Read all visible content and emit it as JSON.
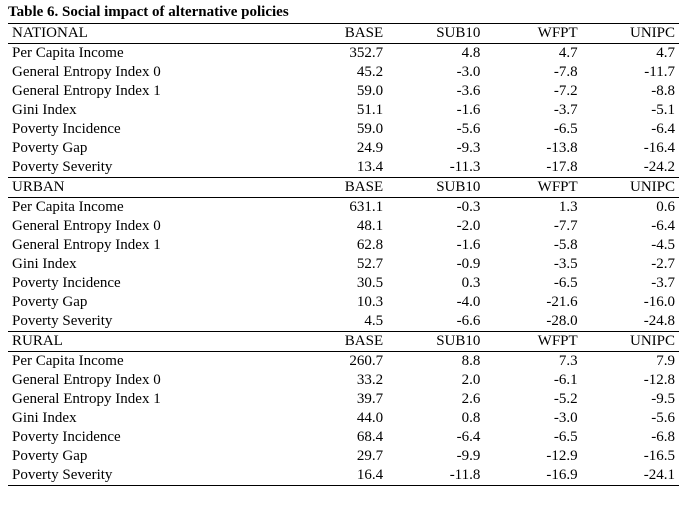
{
  "title": "Table 6. Social impact of alternative policies",
  "columns": [
    "BASE",
    "SUB10",
    "WFPT",
    "UNIPC"
  ],
  "sections": [
    {
      "header": "NATIONAL",
      "rows": [
        {
          "label": "Per Capita Income",
          "vals": [
            "352.7",
            "4.8",
            "4.7",
            "4.7"
          ]
        },
        {
          "label": "General Entropy Index 0",
          "vals": [
            "45.2",
            "-3.0",
            "-7.8",
            "-11.7"
          ]
        },
        {
          "label": "General Entropy Index 1",
          "vals": [
            "59.0",
            "-3.6",
            "-7.2",
            "-8.8"
          ]
        },
        {
          "label": "Gini Index",
          "vals": [
            "51.1",
            "-1.6",
            "-3.7",
            "-5.1"
          ]
        },
        {
          "label": "Poverty Incidence",
          "vals": [
            "59.0",
            "-5.6",
            "-6.5",
            "-6.4"
          ]
        },
        {
          "label": "Poverty Gap",
          "vals": [
            "24.9",
            "-9.3",
            "-13.8",
            "-16.4"
          ]
        },
        {
          "label": "Poverty Severity",
          "vals": [
            "13.4",
            "-11.3",
            "-17.8",
            "-24.2"
          ]
        }
      ]
    },
    {
      "header": "URBAN",
      "rows": [
        {
          "label": "Per Capita Income",
          "vals": [
            "631.1",
            "-0.3",
            "1.3",
            "0.6"
          ]
        },
        {
          "label": "General Entropy Index 0",
          "vals": [
            "48.1",
            "-2.0",
            "-7.7",
            "-6.4"
          ]
        },
        {
          "label": "General Entropy Index 1",
          "vals": [
            "62.8",
            "-1.6",
            "-5.8",
            "-4.5"
          ]
        },
        {
          "label": "Gini Index",
          "vals": [
            "52.7",
            "-0.9",
            "-3.5",
            "-2.7"
          ]
        },
        {
          "label": "Poverty Incidence",
          "vals": [
            "30.5",
            "0.3",
            "-6.5",
            "-3.7"
          ]
        },
        {
          "label": "Poverty Gap",
          "vals": [
            "10.3",
            "-4.0",
            "-21.6",
            "-16.0"
          ]
        },
        {
          "label": "Poverty Severity",
          "vals": [
            "4.5",
            "-6.6",
            "-28.0",
            "-24.8"
          ]
        }
      ]
    },
    {
      "header": "RURAL",
      "rows": [
        {
          "label": "Per Capita Income",
          "vals": [
            "260.7",
            "8.8",
            "7.3",
            "7.9"
          ]
        },
        {
          "label": "General Entropy Index 0",
          "vals": [
            "33.2",
            "2.0",
            "-6.1",
            "-12.8"
          ]
        },
        {
          "label": "General Entropy Index 1",
          "vals": [
            "39.7",
            "2.6",
            "-5.2",
            "-9.5"
          ]
        },
        {
          "label": "Gini Index",
          "vals": [
            "44.0",
            "0.8",
            "-3.0",
            "-5.6"
          ]
        },
        {
          "label": "Poverty Incidence",
          "vals": [
            "68.4",
            "-6.4",
            "-6.5",
            "-6.8"
          ]
        },
        {
          "label": "Poverty Gap",
          "vals": [
            "29.7",
            "-9.9",
            "-12.9",
            "-16.5"
          ]
        },
        {
          "label": "Poverty Severity",
          "vals": [
            "16.4",
            "-11.8",
            "-16.9",
            "-24.1"
          ]
        }
      ]
    }
  ]
}
